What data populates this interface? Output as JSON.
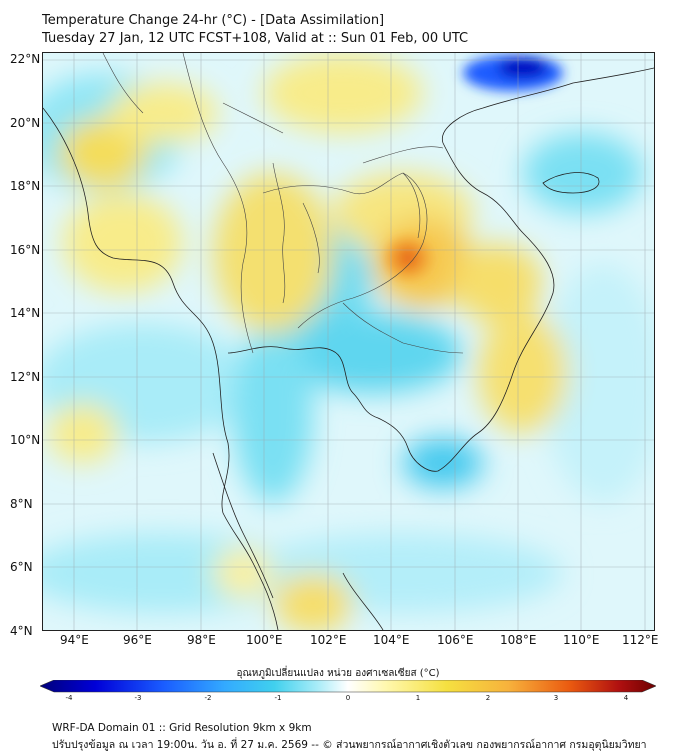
{
  "header": {
    "title_line1": "Temperature Change 24-hr (°C) - [Data Assimilation]",
    "title_line2": "Tuesday 27 Jan, 12 UTC FCST+108, Valid at :: Sun 01 Feb, 00 UTC"
  },
  "map": {
    "lat_labels": [
      "22°N",
      "20°N",
      "18°N",
      "16°N",
      "14°N",
      "12°N",
      "10°N",
      "8°N",
      "6°N",
      "4°N"
    ],
    "lon_labels": [
      "94°E",
      "96°E",
      "98°E",
      "100°E",
      "102°E",
      "104°E",
      "106°E",
      "108°E",
      "110°E",
      "112°E"
    ],
    "lat_range": [
      4,
      22.2
    ],
    "lon_range": [
      93,
      112.3
    ],
    "grid": true
  },
  "colorbar": {
    "title": "อุณหภูมิเปลี่ยนแปลง หน่วย องศาเซลเซียส (°C)",
    "ticks": [
      "-4",
      "-3",
      "-2",
      "-1",
      "0",
      "1",
      "2",
      "3",
      "4"
    ],
    "min": -4,
    "max": 4,
    "colors": [
      "#00007a",
      "#0000d8",
      "#1a5cff",
      "#33aaff",
      "#40d0ee",
      "#a8ecf8",
      "#ffffff",
      "#fff8b0",
      "#f5e040",
      "#f7b23c",
      "#ea5a10",
      "#b01010",
      "#6e0000"
    ]
  },
  "footer": {
    "line1": "WRF-DA Domain 01 :: Grid Resolution 9km x 9km",
    "line2": "ปรับปรุงข้อมูล ณ เวลา 19:00น. วัน อ. ที่ 27 ม.ค. 2569 -- © ส่วนพยากรณ์อากาศเชิงตัวเลข กองพยากรณ์อากาศ กรมอุตุนิยมวิทยา"
  }
}
